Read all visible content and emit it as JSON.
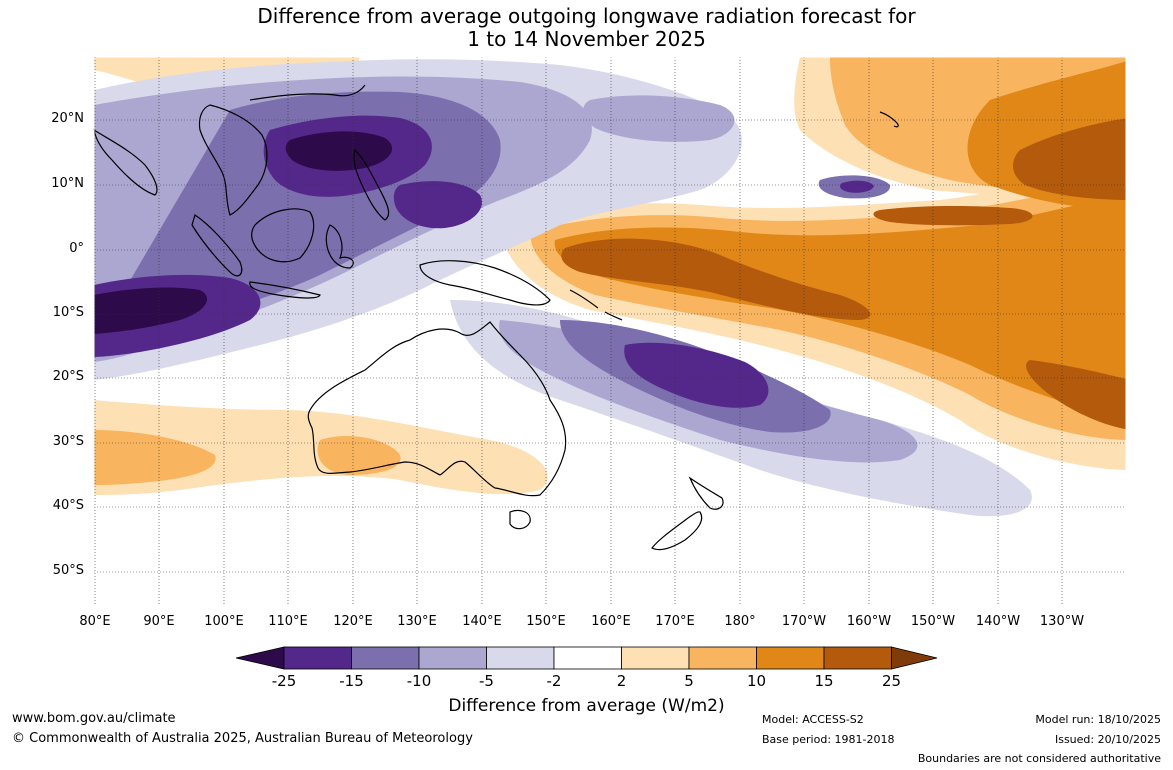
{
  "title_line1": "Difference from average outgoing longwave radiation forecast for",
  "title_line2": "1 to 14 November 2025",
  "lat_labels": [
    "20°N",
    "10°N",
    "0°",
    "10°S",
    "20°S",
    "30°S",
    "40°S",
    "50°S"
  ],
  "lon_labels": [
    "80°E",
    "90°E",
    "100°E",
    "110°E",
    "120°E",
    "130°E",
    "140°E",
    "150°E",
    "160°E",
    "170°E",
    "180°",
    "170°W",
    "160°W",
    "150°W",
    "140°W",
    "130°W"
  ],
  "colorbar": {
    "ticks": [
      "-25",
      "-15",
      "-10",
      "-5",
      "-2",
      "2",
      "5",
      "10",
      "15",
      "25"
    ],
    "colors": [
      "#2d0a4a",
      "#54288a",
      "#7c6fae",
      "#aca7d1",
      "#d9d9ec",
      "#ffffff",
      "#fde0b4",
      "#f9b45f",
      "#e08718",
      "#b35a0d",
      "#7f3b0a"
    ],
    "label": "Difference from average (W/m2)"
  },
  "footer": {
    "url": "www.bom.gov.au/climate",
    "copyright": "© Commonwealth of Australia 2025, Australian Bureau of Meteorology",
    "model": "Model: ACCESS-S2",
    "base_period": "Base period: 1981-2018",
    "model_run": "Model run: 18/10/2025",
    "issued": "Issued: 20/10/2025",
    "disclaimer": "Boundaries are not considered authoritative"
  }
}
